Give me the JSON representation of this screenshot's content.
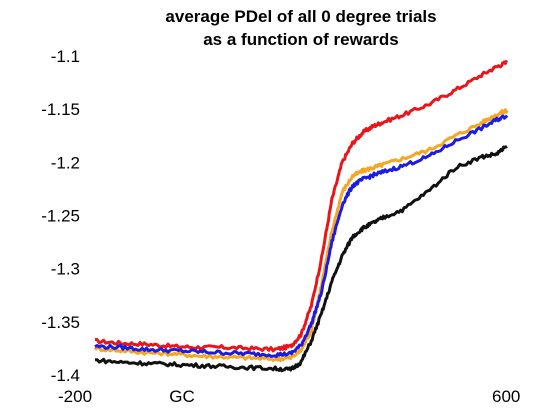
{
  "chart_data": {
    "type": "line",
    "title_lines": [
      "average PDel of all 0 degree trials",
      "as a function of rewards"
    ],
    "xlabel": "",
    "ylabel": "",
    "xlim": [
      -200,
      600
    ],
    "ylim": [
      -1.4,
      -1.1
    ],
    "grid": false,
    "legend": "none",
    "x_ticks": [
      {
        "value": -200,
        "label": "-200"
      },
      {
        "value": 0,
        "label": "GC"
      },
      {
        "value": 600,
        "label": "600"
      }
    ],
    "y_ticks": [
      {
        "value": -1.1,
        "label": "-1.1"
      },
      {
        "value": -1.15,
        "label": "-1.15"
      },
      {
        "value": -1.2,
        "label": "-1.2"
      },
      {
        "value": -1.25,
        "label": "-1.25"
      },
      {
        "value": -1.3,
        "label": "-1.3"
      },
      {
        "value": -1.35,
        "label": "-1.35"
      },
      {
        "value": -1.4,
        "label": "-1.4"
      }
    ],
    "series": [
      {
        "color": "#e8161a",
        "x": [
          -200,
          -150,
          -100,
          -50,
          0,
          50,
          100,
          150,
          180,
          200,
          220,
          240,
          260,
          280,
          300,
          320,
          340,
          360,
          400,
          450,
          500,
          550,
          580,
          600
        ],
        "y": [
          -1.368,
          -1.37,
          -1.371,
          -1.373,
          -1.374,
          -1.374,
          -1.375,
          -1.376,
          -1.373,
          -1.362,
          -1.335,
          -1.29,
          -1.235,
          -1.2,
          -1.182,
          -1.172,
          -1.166,
          -1.162,
          -1.155,
          -1.145,
          -1.132,
          -1.118,
          -1.11,
          -1.106
        ]
      },
      {
        "color": "#f5a623",
        "x": [
          -200,
          -150,
          -100,
          -50,
          0,
          50,
          100,
          150,
          180,
          200,
          220,
          240,
          260,
          280,
          300,
          320,
          340,
          360,
          400,
          450,
          500,
          550,
          580,
          600
        ],
        "y": [
          -1.375,
          -1.377,
          -1.379,
          -1.38,
          -1.382,
          -1.383,
          -1.384,
          -1.385,
          -1.384,
          -1.377,
          -1.358,
          -1.315,
          -1.265,
          -1.228,
          -1.213,
          -1.208,
          -1.205,
          -1.202,
          -1.196,
          -1.188,
          -1.175,
          -1.163,
          -1.155,
          -1.151
        ]
      },
      {
        "color": "#1c1ce0",
        "x": [
          -200,
          -150,
          -100,
          -50,
          0,
          50,
          100,
          150,
          180,
          200,
          220,
          240,
          260,
          280,
          300,
          320,
          340,
          360,
          400,
          450,
          500,
          550,
          580,
          600
        ],
        "y": [
          -1.373,
          -1.374,
          -1.376,
          -1.377,
          -1.378,
          -1.379,
          -1.38,
          -1.381,
          -1.38,
          -1.372,
          -1.352,
          -1.322,
          -1.275,
          -1.24,
          -1.222,
          -1.216,
          -1.212,
          -1.209,
          -1.203,
          -1.194,
          -1.18,
          -1.168,
          -1.16,
          -1.156
        ]
      },
      {
        "color": "#111111",
        "x": [
          -200,
          -150,
          -100,
          -50,
          0,
          50,
          100,
          150,
          180,
          200,
          220,
          240,
          260,
          280,
          300,
          320,
          340,
          360,
          400,
          450,
          500,
          550,
          580,
          600
        ],
        "y": [
          -1.386,
          -1.388,
          -1.389,
          -1.39,
          -1.391,
          -1.392,
          -1.393,
          -1.394,
          -1.395,
          -1.388,
          -1.368,
          -1.342,
          -1.312,
          -1.288,
          -1.27,
          -1.262,
          -1.257,
          -1.252,
          -1.244,
          -1.226,
          -1.205,
          -1.195,
          -1.192,
          -1.185
        ]
      }
    ]
  }
}
